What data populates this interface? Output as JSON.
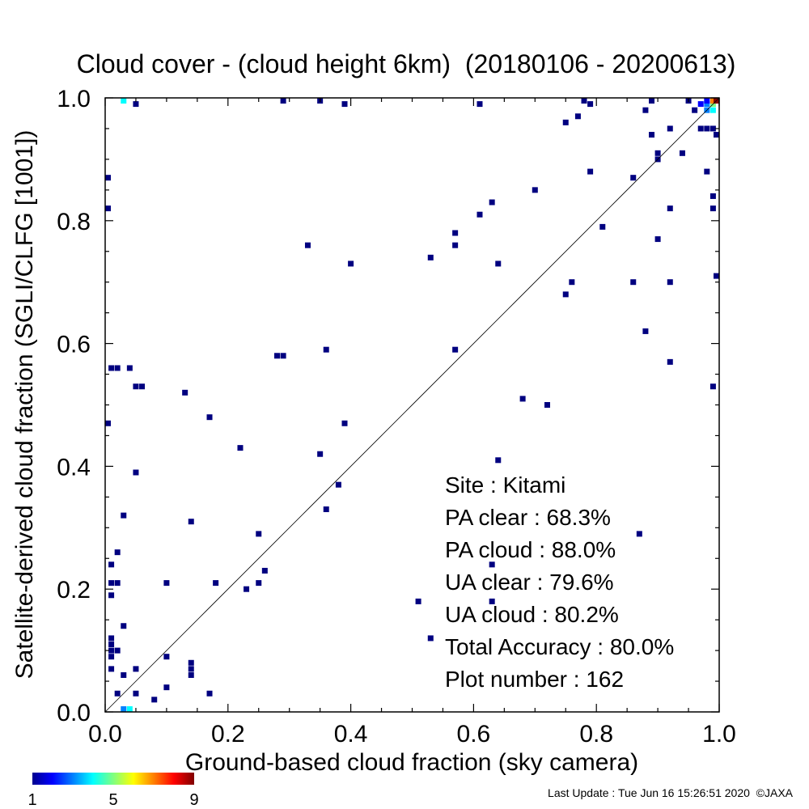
{
  "chart_data": {
    "type": "heatmap",
    "title": "Cloud cover - (cloud height 6km)  (20180106 - 20200613)",
    "xlabel": "Ground-based cloud fraction (sky camera)",
    "ylabel": "Satellite-derived cloud fraction (SGLI/CLFG [1001])",
    "xlim": [
      0.0,
      1.0
    ],
    "ylim": [
      0.0,
      1.0
    ],
    "x_ticks": [
      "0.0",
      "0.2",
      "0.4",
      "0.6",
      "0.8",
      "1.0"
    ],
    "y_ticks": [
      "0.0",
      "0.2",
      "0.4",
      "0.6",
      "0.8",
      "1.0"
    ],
    "diagonal_line": true,
    "grid": false,
    "colorbar": {
      "min": 1,
      "max": 9,
      "labels": [
        "1",
        "5",
        "9"
      ]
    },
    "stats": [
      {
        "label": "Site : Kitami"
      },
      {
        "label": "PA clear :  68.3%"
      },
      {
        "label": "PA cloud :  88.0%"
      },
      {
        "label": "UA clear :  79.6%"
      },
      {
        "label": "UA cloud :  80.2%"
      },
      {
        "label": "Total Accuracy :  80.0%"
      },
      {
        "label": "Plot number :       162"
      }
    ],
    "points": [
      {
        "x": 0.0,
        "y": 0.47,
        "count": 1
      },
      {
        "x": 0.0,
        "y": 0.82,
        "count": 1
      },
      {
        "x": 0.0,
        "y": 0.87,
        "count": 1
      },
      {
        "x": 0.01,
        "y": 0.09,
        "count": 1
      },
      {
        "x": 0.01,
        "y": 0.1,
        "count": 1
      },
      {
        "x": 0.01,
        "y": 0.11,
        "count": 1
      },
      {
        "x": 0.01,
        "y": 0.12,
        "count": 1
      },
      {
        "x": 0.01,
        "y": 0.19,
        "count": 1
      },
      {
        "x": 0.01,
        "y": 0.21,
        "count": 1
      },
      {
        "x": 0.01,
        "y": 0.24,
        "count": 1
      },
      {
        "x": 0.01,
        "y": 0.56,
        "count": 1
      },
      {
        "x": 0.01,
        "y": 0.07,
        "count": 1
      },
      {
        "x": 0.02,
        "y": 0.56,
        "count": 1
      },
      {
        "x": 0.02,
        "y": 0.21,
        "count": 1
      },
      {
        "x": 0.02,
        "y": 0.26,
        "count": 1
      },
      {
        "x": 0.02,
        "y": 0.03,
        "count": 1
      },
      {
        "x": 0.02,
        "y": 0.1,
        "count": 1
      },
      {
        "x": 0.03,
        "y": 0.14,
        "count": 1
      },
      {
        "x": 0.03,
        "y": 0.32,
        "count": 1
      },
      {
        "x": 0.03,
        "y": 0.06,
        "count": 1
      },
      {
        "x": 0.03,
        "y": 1.0,
        "count": 4
      },
      {
        "x": 0.03,
        "y": 0.0,
        "count": 3
      },
      {
        "x": 0.04,
        "y": 0.0,
        "count": 4
      },
      {
        "x": 0.04,
        "y": 0.56,
        "count": 1
      },
      {
        "x": 0.05,
        "y": 0.39,
        "count": 1
      },
      {
        "x": 0.05,
        "y": 0.53,
        "count": 1
      },
      {
        "x": 0.05,
        "y": 0.07,
        "count": 1
      },
      {
        "x": 0.05,
        "y": 0.99,
        "count": 1
      },
      {
        "x": 0.05,
        "y": 0.03,
        "count": 1
      },
      {
        "x": 0.06,
        "y": 0.53,
        "count": 1
      },
      {
        "x": 0.08,
        "y": 0.02,
        "count": 1
      },
      {
        "x": 0.1,
        "y": 0.04,
        "count": 1
      },
      {
        "x": 0.1,
        "y": 0.09,
        "count": 1
      },
      {
        "x": 0.1,
        "y": 0.21,
        "count": 1
      },
      {
        "x": 0.13,
        "y": 0.52,
        "count": 1
      },
      {
        "x": 0.14,
        "y": 0.06,
        "count": 1
      },
      {
        "x": 0.14,
        "y": 0.07,
        "count": 1
      },
      {
        "x": 0.14,
        "y": 0.08,
        "count": 1
      },
      {
        "x": 0.14,
        "y": 0.31,
        "count": 1
      },
      {
        "x": 0.17,
        "y": 0.03,
        "count": 1
      },
      {
        "x": 0.17,
        "y": 0.48,
        "count": 1
      },
      {
        "x": 0.18,
        "y": 0.21,
        "count": 1
      },
      {
        "x": 0.22,
        "y": 0.43,
        "count": 1
      },
      {
        "x": 0.23,
        "y": 0.2,
        "count": 1
      },
      {
        "x": 0.25,
        "y": 0.21,
        "count": 1
      },
      {
        "x": 0.25,
        "y": 0.29,
        "count": 1
      },
      {
        "x": 0.26,
        "y": 0.23,
        "count": 1
      },
      {
        "x": 0.28,
        "y": 0.58,
        "count": 1
      },
      {
        "x": 0.29,
        "y": 0.58,
        "count": 1
      },
      {
        "x": 0.29,
        "y": 1.0,
        "count": 1
      },
      {
        "x": 0.33,
        "y": 0.76,
        "count": 1
      },
      {
        "x": 0.35,
        "y": 0.42,
        "count": 1
      },
      {
        "x": 0.35,
        "y": 1.0,
        "count": 1
      },
      {
        "x": 0.36,
        "y": 0.33,
        "count": 1
      },
      {
        "x": 0.36,
        "y": 0.59,
        "count": 1
      },
      {
        "x": 0.38,
        "y": 0.37,
        "count": 1
      },
      {
        "x": 0.39,
        "y": 0.47,
        "count": 1
      },
      {
        "x": 0.39,
        "y": 0.99,
        "count": 1
      },
      {
        "x": 0.4,
        "y": 0.73,
        "count": 1
      },
      {
        "x": 0.51,
        "y": 0.18,
        "count": 1
      },
      {
        "x": 0.53,
        "y": 0.12,
        "count": 1
      },
      {
        "x": 0.53,
        "y": 0.74,
        "count": 1
      },
      {
        "x": 0.57,
        "y": 0.59,
        "count": 1
      },
      {
        "x": 0.57,
        "y": 0.76,
        "count": 1
      },
      {
        "x": 0.57,
        "y": 0.78,
        "count": 1
      },
      {
        "x": 0.61,
        "y": 0.81,
        "count": 1
      },
      {
        "x": 0.61,
        "y": 0.99,
        "count": 1
      },
      {
        "x": 0.63,
        "y": 0.18,
        "count": 1
      },
      {
        "x": 0.63,
        "y": 0.24,
        "count": 1
      },
      {
        "x": 0.63,
        "y": 0.83,
        "count": 1
      },
      {
        "x": 0.64,
        "y": 0.41,
        "count": 1
      },
      {
        "x": 0.64,
        "y": 0.73,
        "count": 1
      },
      {
        "x": 0.68,
        "y": 0.51,
        "count": 1
      },
      {
        "x": 0.7,
        "y": 0.85,
        "count": 1
      },
      {
        "x": 0.72,
        "y": 0.5,
        "count": 1
      },
      {
        "x": 0.75,
        "y": 0.68,
        "count": 1
      },
      {
        "x": 0.75,
        "y": 0.96,
        "count": 1
      },
      {
        "x": 0.76,
        "y": 0.7,
        "count": 1
      },
      {
        "x": 0.77,
        "y": 0.97,
        "count": 1
      },
      {
        "x": 0.78,
        "y": 1.0,
        "count": 1
      },
      {
        "x": 0.79,
        "y": 0.88,
        "count": 1
      },
      {
        "x": 0.79,
        "y": 0.99,
        "count": 1
      },
      {
        "x": 0.81,
        "y": 0.79,
        "count": 1
      },
      {
        "x": 0.86,
        "y": 0.7,
        "count": 1
      },
      {
        "x": 0.86,
        "y": 0.87,
        "count": 1
      },
      {
        "x": 0.87,
        "y": 0.29,
        "count": 1
      },
      {
        "x": 0.88,
        "y": 0.62,
        "count": 1
      },
      {
        "x": 0.88,
        "y": 0.98,
        "count": 1
      },
      {
        "x": 0.89,
        "y": 0.94,
        "count": 1
      },
      {
        "x": 0.89,
        "y": 1.0,
        "count": 1
      },
      {
        "x": 0.9,
        "y": 0.77,
        "count": 1
      },
      {
        "x": 0.9,
        "y": 0.9,
        "count": 1
      },
      {
        "x": 0.9,
        "y": 0.91,
        "count": 1
      },
      {
        "x": 0.92,
        "y": 0.57,
        "count": 1
      },
      {
        "x": 0.92,
        "y": 0.7,
        "count": 1
      },
      {
        "x": 0.92,
        "y": 0.82,
        "count": 1
      },
      {
        "x": 0.92,
        "y": 0.95,
        "count": 1
      },
      {
        "x": 0.94,
        "y": 0.91,
        "count": 1
      },
      {
        "x": 0.95,
        "y": 1.0,
        "count": 1
      },
      {
        "x": 0.96,
        "y": 0.98,
        "count": 1
      },
      {
        "x": 0.97,
        "y": 0.99,
        "count": 2
      },
      {
        "x": 0.97,
        "y": 0.95,
        "count": 1
      },
      {
        "x": 0.98,
        "y": 0.88,
        "count": 1
      },
      {
        "x": 0.98,
        "y": 0.95,
        "count": 1
      },
      {
        "x": 0.98,
        "y": 0.98,
        "count": 3
      },
      {
        "x": 0.98,
        "y": 0.99,
        "count": 3
      },
      {
        "x": 0.98,
        "y": 1.0,
        "count": 2
      },
      {
        "x": 0.99,
        "y": 0.53,
        "count": 1
      },
      {
        "x": 0.99,
        "y": 0.82,
        "count": 1
      },
      {
        "x": 0.99,
        "y": 0.84,
        "count": 1
      },
      {
        "x": 0.99,
        "y": 0.95,
        "count": 1
      },
      {
        "x": 0.99,
        "y": 0.98,
        "count": 4
      },
      {
        "x": 0.99,
        "y": 0.99,
        "count": 5
      },
      {
        "x": 0.99,
        "y": 1.0,
        "count": 7
      },
      {
        "x": 1.0,
        "y": 0.71,
        "count": 1
      },
      {
        "x": 1.0,
        "y": 0.94,
        "count": 1
      },
      {
        "x": 1.0,
        "y": 1.0,
        "count": 9
      }
    ]
  },
  "footer": "Last Update : Tue Jun 16 15:26:51 2020  ©JAXA"
}
